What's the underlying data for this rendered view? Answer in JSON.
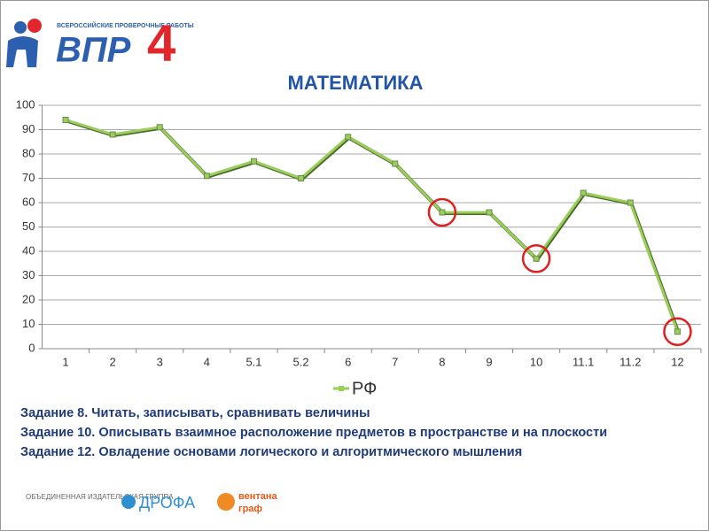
{
  "header": {
    "logo_subtitle": "ВСЕРОССИЙСКИЕ ПРОВЕРОЧНЫЕ РАБОТЫ",
    "logo_text": "ВПР",
    "logo_number": "4"
  },
  "chart_data": {
    "type": "line",
    "title": "МАТЕМАТИКА",
    "categories": [
      "1",
      "2",
      "3",
      "4",
      "5.1",
      "5.2",
      "6",
      "7",
      "8",
      "9",
      "10",
      "11.1",
      "11.2",
      "12"
    ],
    "series": [
      {
        "name": "РФ",
        "color": "#9acd5a",
        "values": [
          94,
          88,
          91,
          71,
          77,
          70,
          87,
          76,
          56,
          56,
          37,
          64,
          60,
          7
        ]
      }
    ],
    "ylim": [
      0,
      100
    ],
    "yticks": [
      0,
      10,
      20,
      30,
      40,
      50,
      60,
      70,
      80,
      90,
      100
    ],
    "grid": true,
    "legend": "bottom",
    "highlighted_categories": [
      "8",
      "10",
      "12"
    ],
    "highlight_color": "#e02020"
  },
  "notes": [
    "Задание 8. Читать, записывать, сравнивать величины",
    "Задание 10. Описывать взаимное расположение предметов в пространстве и на плоскости",
    "Задание 12. Овладение основами логического и алгоритмического мышления"
  ],
  "footer": {
    "group": "ОБЪЕДИНЕННАЯ ИЗДАТЕЛЬСКАЯ ГРУППА",
    "brand1": "ДРОФА",
    "brand2a": "вентана",
    "brand2b": "граф"
  }
}
